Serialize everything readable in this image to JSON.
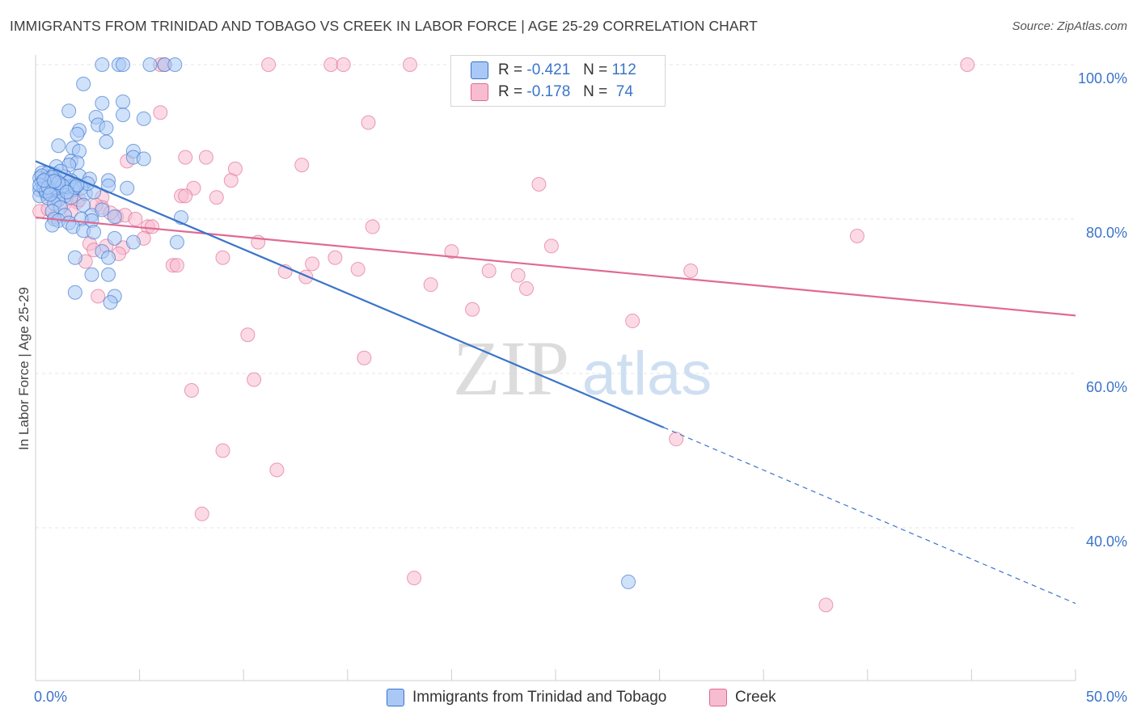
{
  "header": {
    "title": "IMMIGRANTS FROM TRINIDAD AND TOBAGO VS CREEK IN LABOR FORCE | AGE 25-29 CORRELATION CHART",
    "source": "Source: ZipAtlas.com"
  },
  "watermark": {
    "zip": "ZIP",
    "atlas": "atlas"
  },
  "legend_top": [
    {
      "r_label": "R =",
      "r_value": "-0.421",
      "n_label": "N =",
      "n_value": "112"
    },
    {
      "r_label": "R =",
      "r_value": "-0.178",
      "n_label": "N =",
      "n_value": "74"
    }
  ],
  "chart_data": {
    "type": "scatter",
    "title": "IMMIGRANTS FROM TRINIDAD AND TOBAGO VS CREEK IN LABOR FORCE | AGE 25-29 CORRELATION CHART",
    "xlabel": "",
    "ylabel": "In Labor Force | Age 25-29",
    "xlim": [
      0,
      50
    ],
    "ylim": [
      20,
      105
    ],
    "x_tick_labels": [
      "0.0%",
      "50.0%"
    ],
    "y_ticks": [
      100,
      80,
      60,
      40
    ],
    "y_tick_labels": [
      "100.0%",
      "80.0%",
      "60.0%",
      "40.0%"
    ],
    "grid": true,
    "legend_position": "bottom-center",
    "colors": {
      "blue": "#3a74c9",
      "pink": "#e06a94",
      "blue_fill": "#a9c8f5",
      "pink_fill": "#f7bcd0"
    },
    "series": [
      {
        "name": "Immigrants from Trinidad and Tobago",
        "color": "#3a74c9",
        "fill": "#a9c8f5",
        "trend": {
          "x": [
            0,
            30.2
          ],
          "y": [
            87.5,
            53.0
          ],
          "dash_x": [
            30.2,
            50
          ],
          "dash_y": [
            53.0,
            30.2
          ]
        },
        "points": [
          [
            3.2,
            100
          ],
          [
            4.0,
            100
          ],
          [
            4.2,
            100
          ],
          [
            5.5,
            100
          ],
          [
            6.2,
            100
          ],
          [
            6.7,
            100
          ],
          [
            2.3,
            97.5
          ],
          [
            3.2,
            95.0
          ],
          [
            4.2,
            95.2
          ],
          [
            1.6,
            94.0
          ],
          [
            4.2,
            93.5
          ],
          [
            5.2,
            93.0
          ],
          [
            2.9,
            93.2
          ],
          [
            3.0,
            92.2
          ],
          [
            2.1,
            91.5
          ],
          [
            2.0,
            91.0
          ],
          [
            3.4,
            91.8
          ],
          [
            3.4,
            90.0
          ],
          [
            1.1,
            89.5
          ],
          [
            1.8,
            89.2
          ],
          [
            2.1,
            88.8
          ],
          [
            4.7,
            88.8
          ],
          [
            4.7,
            88.0
          ],
          [
            5.2,
            87.8
          ],
          [
            1.7,
            87.5
          ],
          [
            2.0,
            87.3
          ],
          [
            1.6,
            87.0
          ],
          [
            1.0,
            86.8
          ],
          [
            0.3,
            86.0
          ],
          [
            0.6,
            86.0
          ],
          [
            0.9,
            85.8
          ],
          [
            1.4,
            85.5
          ],
          [
            2.1,
            85.6
          ],
          [
            0.2,
            85.3
          ],
          [
            0.5,
            85.2
          ],
          [
            1.0,
            85.0
          ],
          [
            1.7,
            85.0
          ],
          [
            2.6,
            85.2
          ],
          [
            3.5,
            85.0
          ],
          [
            0.3,
            84.8
          ],
          [
            0.6,
            84.6
          ],
          [
            0.8,
            84.4
          ],
          [
            1.2,
            84.5
          ],
          [
            1.9,
            84.5
          ],
          [
            2.2,
            84.0
          ],
          [
            0.4,
            84.2
          ],
          [
            0.2,
            83.8
          ],
          [
            0.7,
            83.8
          ],
          [
            1.0,
            83.5
          ],
          [
            1.3,
            83.7
          ],
          [
            1.8,
            83.8
          ],
          [
            0.5,
            83.3
          ],
          [
            0.9,
            83.0
          ],
          [
            1.4,
            83.0
          ],
          [
            2.4,
            83.3
          ],
          [
            0.2,
            83.0
          ],
          [
            0.6,
            82.7
          ],
          [
            1.1,
            82.5
          ],
          [
            1.7,
            82.8
          ],
          [
            2.8,
            83.5
          ],
          [
            3.5,
            84.3
          ],
          [
            4.4,
            84.0
          ],
          [
            0.9,
            82.0
          ],
          [
            1.2,
            81.5
          ],
          [
            2.3,
            81.8
          ],
          [
            0.8,
            81.0
          ],
          [
            1.4,
            80.5
          ],
          [
            0.9,
            80.0
          ],
          [
            1.1,
            79.8
          ],
          [
            2.7,
            80.5
          ],
          [
            3.2,
            81.2
          ],
          [
            2.2,
            80.0
          ],
          [
            1.6,
            79.5
          ],
          [
            0.8,
            79.2
          ],
          [
            1.8,
            79.0
          ],
          [
            2.7,
            79.8
          ],
          [
            3.8,
            80.3
          ],
          [
            7.0,
            80.2
          ],
          [
            2.3,
            78.5
          ],
          [
            2.8,
            78.3
          ],
          [
            3.8,
            77.5
          ],
          [
            4.7,
            77.0
          ],
          [
            6.8,
            77.0
          ],
          [
            1.9,
            75.0
          ],
          [
            3.2,
            75.8
          ],
          [
            3.5,
            75.0
          ],
          [
            2.7,
            72.8
          ],
          [
            3.5,
            72.8
          ],
          [
            1.9,
            70.5
          ],
          [
            3.8,
            70.0
          ],
          [
            3.6,
            69.2
          ],
          [
            28.5,
            33.0
          ],
          [
            0.4,
            84.0
          ],
          [
            0.7,
            84.8
          ],
          [
            1.5,
            84.2
          ],
          [
            0.3,
            85.6
          ],
          [
            1.2,
            86.2
          ],
          [
            2.5,
            84.6
          ],
          [
            0.5,
            83.6
          ],
          [
            1.0,
            84.0
          ],
          [
            1.6,
            84.8
          ],
          [
            0.2,
            84.4
          ],
          [
            0.8,
            85.4
          ],
          [
            1.3,
            84.3
          ],
          [
            0.6,
            84.1
          ],
          [
            1.9,
            84.1
          ],
          [
            2.0,
            84.4
          ],
          [
            0.4,
            85.0
          ],
          [
            1.1,
            84.7
          ],
          [
            0.9,
            84.9
          ],
          [
            1.5,
            83.5
          ],
          [
            0.7,
            83.2
          ]
        ]
      },
      {
        "name": "Creek",
        "color": "#e06a94",
        "fill": "#f7bcd0",
        "trend": {
          "x": [
            0,
            50
          ],
          "y": [
            80.2,
            67.5
          ]
        },
        "points": [
          [
            6.0,
            100
          ],
          [
            6.2,
            100
          ],
          [
            11.2,
            100
          ],
          [
            14.2,
            100
          ],
          [
            14.8,
            100
          ],
          [
            18.0,
            100
          ],
          [
            44.8,
            100
          ],
          [
            6.0,
            93.8
          ],
          [
            16.0,
            92.5
          ],
          [
            7.2,
            88.0
          ],
          [
            8.2,
            88.0
          ],
          [
            12.8,
            87.0
          ],
          [
            4.4,
            87.5
          ],
          [
            9.6,
            86.5
          ],
          [
            9.4,
            85.0
          ],
          [
            24.2,
            84.5
          ],
          [
            7.6,
            84.0
          ],
          [
            7.0,
            83.0
          ],
          [
            7.2,
            83.0
          ],
          [
            8.7,
            82.8
          ],
          [
            3.2,
            82.8
          ],
          [
            2.0,
            82.2
          ],
          [
            3.2,
            81.5
          ],
          [
            0.2,
            81.0
          ],
          [
            0.9,
            80.3
          ],
          [
            3.9,
            80.3
          ],
          [
            4.3,
            80.5
          ],
          [
            4.8,
            80.0
          ],
          [
            5.4,
            79.0
          ],
          [
            5.6,
            79.0
          ],
          [
            16.2,
            79.0
          ],
          [
            39.5,
            77.8
          ],
          [
            5.2,
            77.5
          ],
          [
            10.7,
            77.0
          ],
          [
            2.6,
            76.8
          ],
          [
            3.4,
            76.5
          ],
          [
            4.2,
            76.3
          ],
          [
            2.8,
            76.0
          ],
          [
            4.0,
            75.5
          ],
          [
            20.0,
            75.8
          ],
          [
            24.8,
            76.5
          ],
          [
            14.4,
            75.0
          ],
          [
            9.0,
            75.0
          ],
          [
            13.3,
            74.2
          ],
          [
            2.4,
            74.5
          ],
          [
            6.6,
            74.0
          ],
          [
            6.8,
            74.0
          ],
          [
            12.0,
            73.2
          ],
          [
            13.0,
            72.5
          ],
          [
            15.5,
            73.5
          ],
          [
            21.8,
            73.3
          ],
          [
            23.2,
            72.7
          ],
          [
            31.5,
            73.3
          ],
          [
            19.0,
            71.5
          ],
          [
            23.6,
            71.0
          ],
          [
            3.0,
            70.0
          ],
          [
            21.0,
            68.3
          ],
          [
            28.7,
            66.8
          ],
          [
            10.2,
            65.0
          ],
          [
            15.8,
            62.0
          ],
          [
            10.5,
            59.2
          ],
          [
            7.5,
            57.8
          ],
          [
            30.8,
            51.5
          ],
          [
            9.0,
            50.0
          ],
          [
            11.6,
            47.5
          ],
          [
            8.0,
            41.8
          ],
          [
            18.2,
            33.5
          ],
          [
            38.0,
            30.0
          ],
          [
            1.4,
            82.0
          ],
          [
            2.1,
            82.5
          ],
          [
            0.6,
            81.3
          ],
          [
            1.7,
            81.0
          ],
          [
            3.6,
            80.8
          ],
          [
            2.9,
            81.8
          ]
        ]
      }
    ]
  },
  "legend_bottom": [
    {
      "label": "Immigrants from Trinidad and Tobago"
    },
    {
      "label": "Creek"
    }
  ]
}
